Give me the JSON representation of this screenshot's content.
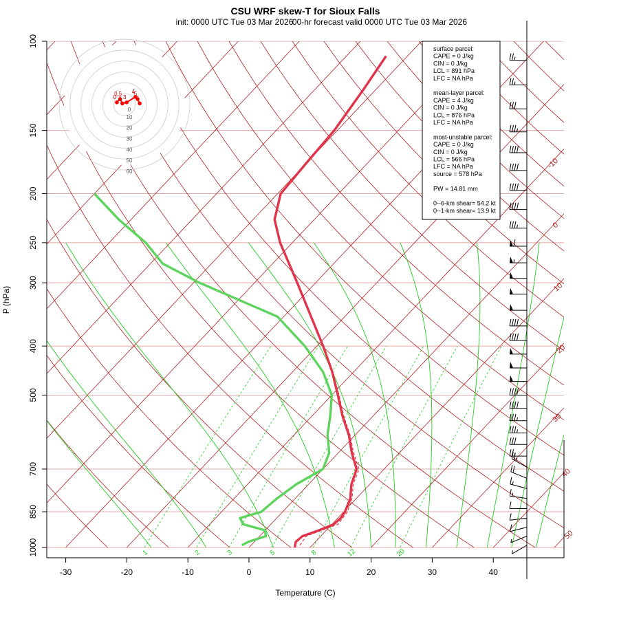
{
  "chart_data": {
    "type": "skew-t",
    "title": "CSU WRF skew-T for Sioux Falls",
    "subtitle_init": "init: 0000 UTC Tue 03 Mar 2026",
    "subtitle_valid": "00-hr forecast valid 0000 UTC Tue 03 Mar 2026",
    "xlabel": "Temperature (C)",
    "ylabel": "P (hPa)",
    "x_ticks": [
      -30,
      -20,
      -10,
      0,
      10,
      20,
      30,
      40
    ],
    "p_ticks": [
      100,
      150,
      200,
      250,
      300,
      400,
      500,
      700,
      850,
      1000
    ],
    "isotherm_labels": [
      -10,
      0,
      10,
      20,
      30,
      40,
      50
    ],
    "mixing_ratio_labels": [
      "1",
      "2",
      "3",
      "5",
      "8",
      "12",
      "20"
    ],
    "hodograph_rings": [
      10,
      20,
      30,
      40,
      50,
      60
    ],
    "hodograph_ring_zero": "0",
    "temperature": [
      [
        1000,
        7.5
      ],
      [
        975,
        6.8
      ],
      [
        950,
        7.0
      ],
      [
        925,
        8.8
      ],
      [
        900,
        10.3
      ],
      [
        875,
        10.5
      ],
      [
        850,
        10.2
      ],
      [
        800,
        9.0
      ],
      [
        750,
        7.0
      ],
      [
        700,
        5.5
      ],
      [
        650,
        2.2
      ],
      [
        600,
        -1.0
      ],
      [
        550,
        -5.0
      ],
      [
        500,
        -9.0
      ],
      [
        450,
        -13.5
      ],
      [
        400,
        -19.0
      ],
      [
        350,
        -25.5
      ],
      [
        300,
        -33.0
      ],
      [
        250,
        -42.0
      ],
      [
        225,
        -46.5
      ],
      [
        200,
        -49.5
      ],
      [
        175,
        -50.0
      ],
      [
        150,
        -50.5
      ],
      [
        125,
        -52.0
      ],
      [
        107,
        -53.5
      ]
    ],
    "dewpoint": [
      [
        990,
        -1.5
      ],
      [
        975,
        -1.0
      ],
      [
        950,
        1.0
      ],
      [
        925,
        0.0
      ],
      [
        900,
        -4.5
      ],
      [
        875,
        -6.0
      ],
      [
        850,
        -3.5
      ],
      [
        800,
        -3.0
      ],
      [
        750,
        -2.0
      ],
      [
        700,
        0.0
      ],
      [
        650,
        -1.5
      ],
      [
        600,
        -4.5
      ],
      [
        550,
        -7.0
      ],
      [
        500,
        -10.0
      ],
      [
        450,
        -15.0
      ],
      [
        400,
        -22.0
      ],
      [
        350,
        -31.0
      ],
      [
        300,
        -49.0
      ],
      [
        275,
        -58.0
      ],
      [
        250,
        -64.0
      ],
      [
        225,
        -72.0
      ],
      [
        200,
        -80.0
      ]
    ],
    "virtual_temperature": [
      [
        990,
        8.0
      ],
      [
        950,
        7.6
      ],
      [
        900,
        11.0
      ],
      [
        850,
        10.6
      ],
      [
        800,
        9.3
      ],
      [
        750,
        7.3
      ],
      [
        700,
        5.9
      ],
      [
        650,
        2.5
      ],
      [
        600,
        -0.8
      ],
      [
        550,
        -4.8
      ],
      [
        500,
        -8.8
      ],
      [
        470,
        -11.5
      ]
    ],
    "hodograph": {
      "labels": [
        "0",
        "0.5",
        "1",
        "3",
        "4",
        "5",
        "6"
      ],
      "u_kt": [
        -7,
        -4,
        -2,
        2,
        10,
        12,
        14
      ],
      "v_kt": [
        2,
        5,
        1,
        2,
        7,
        5,
        1
      ]
    },
    "wind_barbs": [
      {
        "p": 109,
        "kt": 25
      },
      {
        "p": 122,
        "kt": 25
      },
      {
        "p": 136,
        "kt": 30
      },
      {
        "p": 151,
        "kt": 35
      },
      {
        "p": 166,
        "kt": 40
      },
      {
        "p": 180,
        "kt": 40
      },
      {
        "p": 197,
        "kt": 40
      },
      {
        "p": 215,
        "kt": 40
      },
      {
        "p": 234,
        "kt": 35
      },
      {
        "p": 254,
        "kt": 60
      },
      {
        "p": 274,
        "kt": 55
      },
      {
        "p": 294,
        "kt": 50
      },
      {
        "p": 316,
        "kt": 50
      },
      {
        "p": 340,
        "kt": 50
      },
      {
        "p": 365,
        "kt": 40
      },
      {
        "p": 390,
        "kt": 40
      },
      {
        "p": 415,
        "kt": 50
      },
      {
        "p": 442,
        "kt": 50
      },
      {
        "p": 470,
        "kt": 50
      },
      {
        "p": 500,
        "kt": 40
      },
      {
        "p": 531,
        "kt": 40
      },
      {
        "p": 562,
        "kt": 35
      },
      {
        "p": 594,
        "kt": 35
      },
      {
        "p": 626,
        "kt": 30
      },
      {
        "p": 660,
        "kt": 25
      },
      {
        "p": 694,
        "kt": 25
      },
      {
        "p": 730,
        "kt": 20
      },
      {
        "p": 765,
        "kt": 15
      },
      {
        "p": 800,
        "kt": 15
      },
      {
        "p": 838,
        "kt": 10
      },
      {
        "p": 875,
        "kt": 10
      },
      {
        "p": 912,
        "kt": 10
      },
      {
        "p": 950,
        "kt": 5
      },
      {
        "p": 990,
        "kt": 5
      }
    ],
    "stats": [
      "surface parcel:",
      "CAPE = 0 J/kg",
      "CIN = 0 J/kg",
      "LCL = 891 hPa",
      "LFC = NA hPa",
      "",
      "mean-layer parcel:",
      "CAPE = 4 J/kg",
      "CIN = 0 J/kg",
      "LCL = 876 hPa",
      "LFC = NA hPa",
      "",
      "most-unstable parcel:",
      "CAPE = 0 J/kg",
      "CIN = 0 J/kg",
      "LCL = 566 hPa",
      "LFC = NA hPa",
      "source = 578 hPa",
      "",
      "PW =  14.81 mm",
      "",
      "0--6-km shear= 54.2 kt",
      "0--1-km shear= 13.9 kt"
    ],
    "colors": {
      "temperature": "#e0344a",
      "dewpoint": "#5ed45e",
      "isotherm": "#b22222",
      "isobar": "#e6a8a8",
      "mixing_ratio": "#22cc22",
      "dry_adiabat": "#b22222",
      "moist_adiabat": "#22cc22",
      "hodograph": "#ff0000"
    }
  }
}
